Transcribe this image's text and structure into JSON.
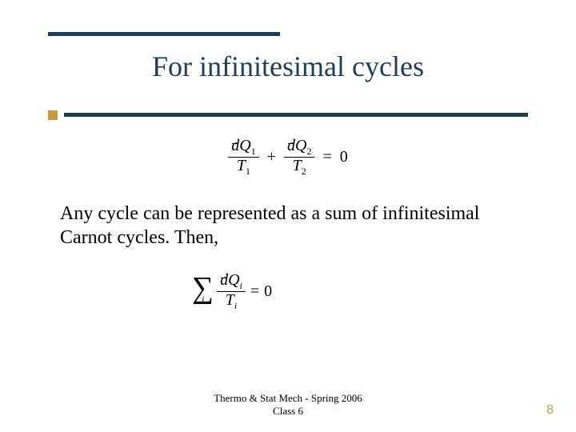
{
  "theme": {
    "accent_dark": "#1f3d57",
    "accent_gold": "#c59a42",
    "background": "#ffffff",
    "text_color": "#000000"
  },
  "title": "For infinitesimal cycles",
  "equation1": {
    "term1_num_symbol": "d",
    "term1_num_var": "Q",
    "term1_num_sub": "1",
    "term1_den_var": "T",
    "term1_den_sub": "1",
    "plus": "+",
    "term2_num_symbol": "d",
    "term2_num_var": "Q",
    "term2_num_sub": "2",
    "term2_den_var": "T",
    "term2_den_sub": "2",
    "equals": "=",
    "rhs": "0"
  },
  "body": "Any cycle can be represented as a sum of infinitesimal Carnot cycles. Then,",
  "equation2": {
    "sigma": "∑",
    "sigma_index": "i",
    "num_symbol": "d",
    "num_var": "Q",
    "num_sub": "i",
    "den_var": "T",
    "den_sub": "i",
    "equals": "=",
    "rhs": "0"
  },
  "footer": {
    "line1": "Thermo & Stat Mech - Spring 2006",
    "line2": "Class 6"
  },
  "page_number": "8"
}
